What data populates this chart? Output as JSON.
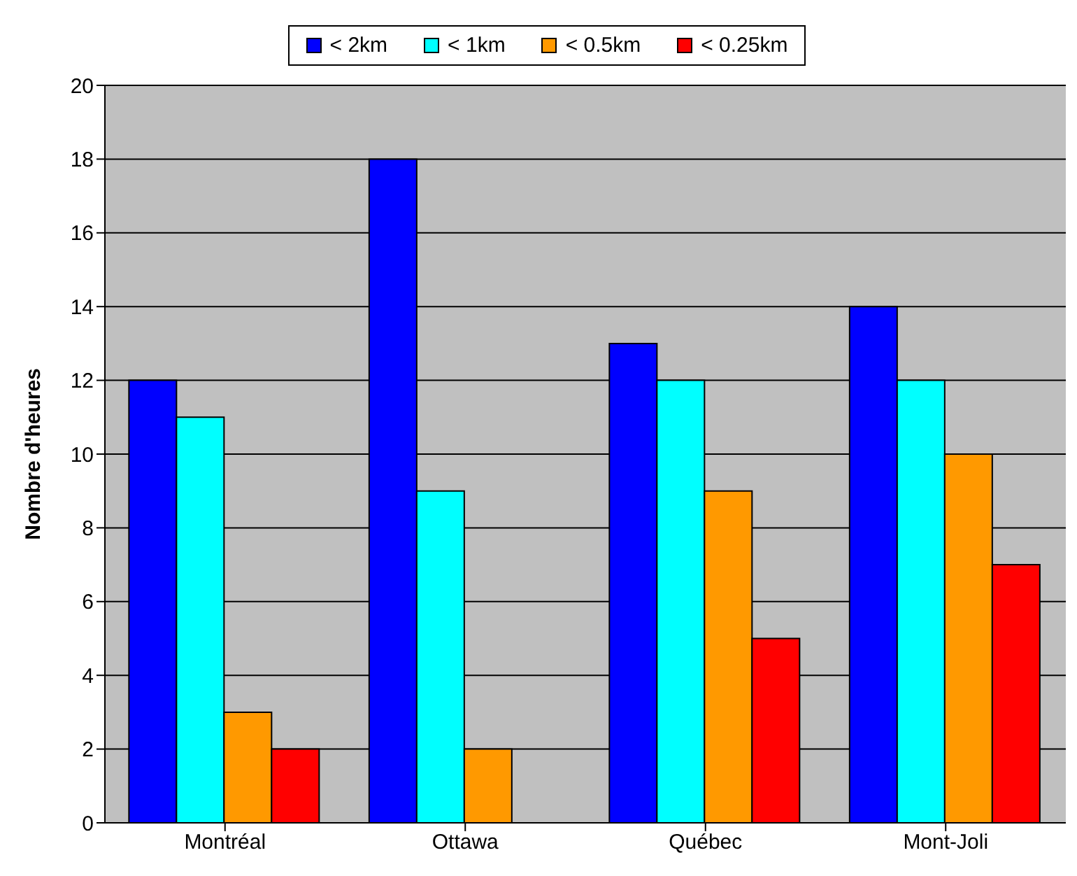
{
  "chart_data": {
    "type": "bar",
    "ylabel": "Nombre d'heures",
    "categories": [
      "Montréal",
      "Ottawa",
      "Québec",
      "Mont-Joli"
    ],
    "series": [
      {
        "name": "< 2km",
        "color": "#0000ff",
        "values": [
          12,
          18,
          13,
          14
        ]
      },
      {
        "name": "< 1km",
        "color": "#00ffff",
        "values": [
          11,
          9,
          12,
          12
        ]
      },
      {
        "name": "< 0.5km",
        "color": "#ff9900",
        "values": [
          3,
          2,
          9,
          10
        ]
      },
      {
        "name": "< 0.25km",
        "color": "#ff0000",
        "values": [
          2,
          0,
          5,
          7
        ]
      }
    ],
    "ylim": [
      0,
      20
    ],
    "yticks": [
      0,
      2,
      4,
      6,
      8,
      10,
      12,
      14,
      16,
      18,
      20
    ],
    "grid": "y",
    "legend": "top"
  }
}
